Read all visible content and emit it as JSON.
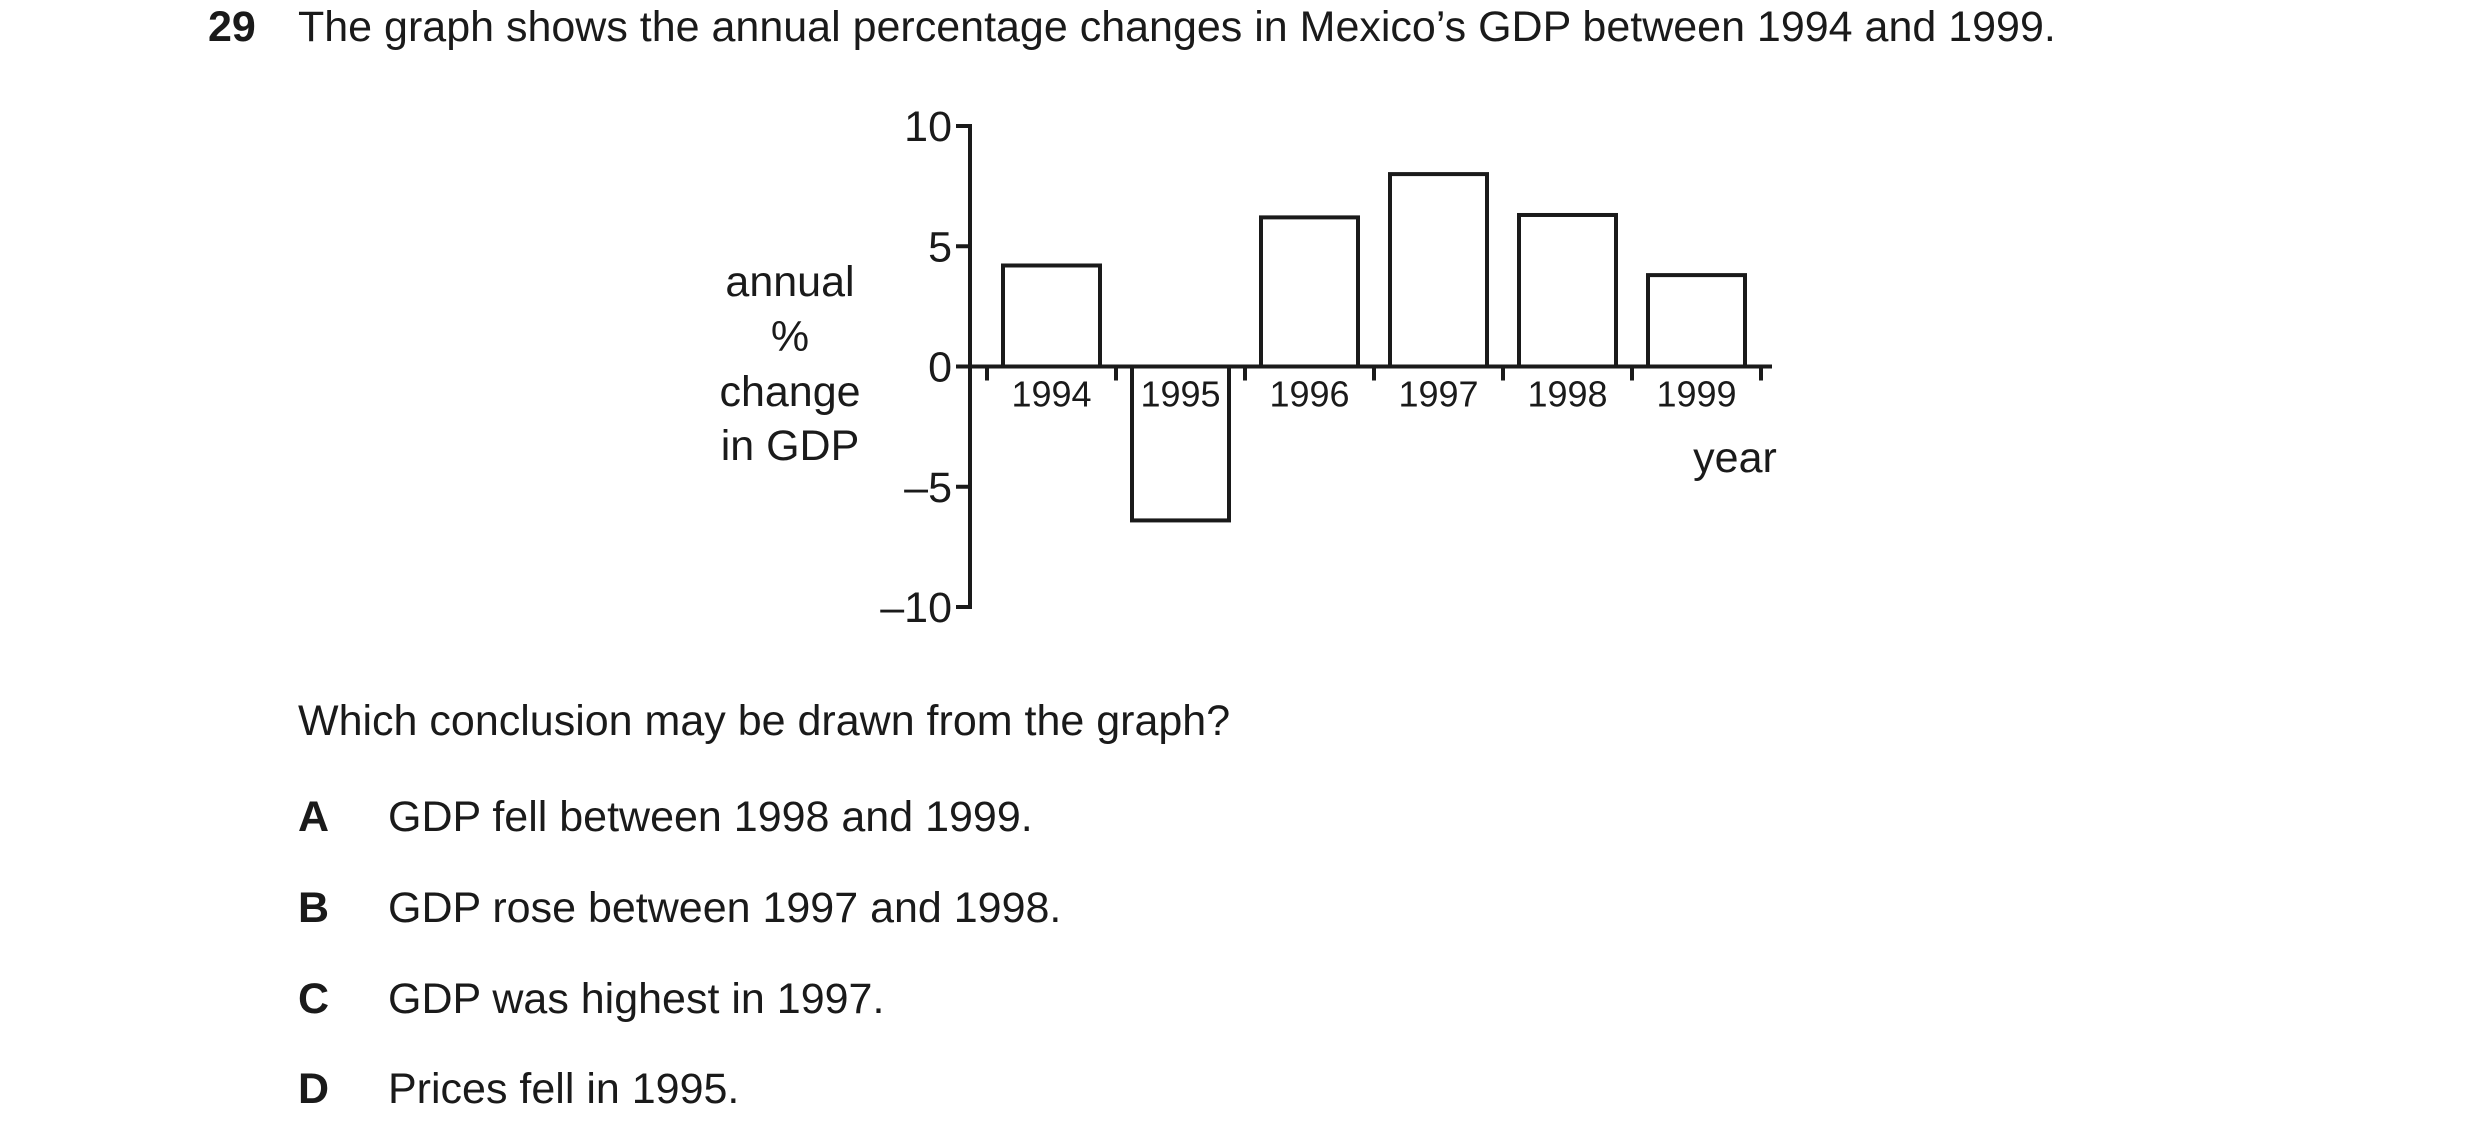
{
  "question": {
    "number": "29",
    "text": "The graph shows the annual percentage changes in Mexico’s GDP between 1994 and 1999.",
    "prompt": "Which conclusion may be drawn from the graph?",
    "options": [
      {
        "letter": "A",
        "text": "GDP fell between 1998 and 1999."
      },
      {
        "letter": "B",
        "text": "GDP rose between 1997 and 1998."
      },
      {
        "letter": "C",
        "text": "GDP was highest in 1997."
      },
      {
        "letter": "D",
        "text": "Prices fell in 1995."
      }
    ]
  },
  "chart_data": {
    "type": "bar",
    "categories": [
      "1994",
      "1995",
      "1996",
      "1997",
      "1998",
      "1999"
    ],
    "values": [
      4.2,
      -6.4,
      6.2,
      8.0,
      6.3,
      3.8
    ],
    "ylabel_lines": [
      "annual",
      "%",
      "change",
      "in GDP"
    ],
    "xlabel": "year",
    "ylim": [
      -10,
      10
    ],
    "yticks": [
      10,
      5,
      0,
      -5,
      -10
    ],
    "ytick_labels": [
      "10",
      "5",
      "0",
      "–5",
      "–10"
    ],
    "grid": false,
    "bar_fill": "#ffffff",
    "bar_stroke": "#1a1a1a"
  }
}
